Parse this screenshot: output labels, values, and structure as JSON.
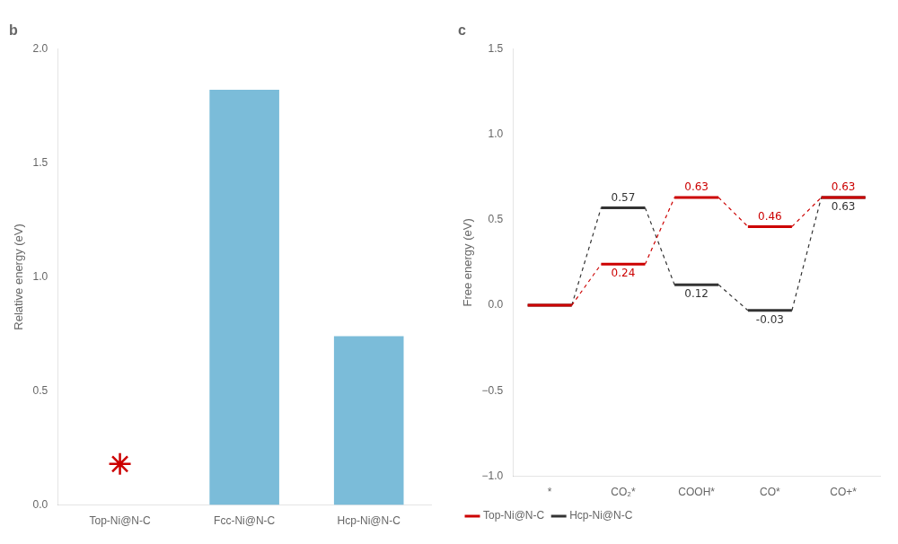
{
  "chart_data": [
    {
      "type": "bar",
      "title": "b",
      "categories": [
        "Top-Ni@N-C",
        "Fcc-Ni@N-C",
        "Hcp-Ni@N-C"
      ],
      "series": [
        {
          "type": "bar",
          "color": "#7BBCD9",
          "values": [
            0.0,
            1.82,
            0.74
          ]
        },
        {
          "type": "scatter",
          "marker": "star",
          "color": "#CC0000",
          "values": [
            0.18,
            null,
            null
          ]
        }
      ],
      "ylabel": "Relative energy (eV)",
      "ylim": [
        0.0,
        2.0
      ],
      "yticks": [
        {
          "value": 0.0,
          "label": "0.0"
        },
        0.5,
        {
          "value": 1.0,
          "label": "1.0"
        },
        1.5,
        {
          "value": 2.0,
          "label": "2.0"
        }
      ],
      "grid": false
    },
    {
      "type": "line",
      "title": "c",
      "categories": [
        "*",
        "CO₂*",
        "COOH*",
        "CO*",
        "CO+*"
      ],
      "series": [
        {
          "name": "Top-Ni@N-C",
          "color": "#CC0000",
          "values": [
            0.0,
            0.24,
            0.63,
            0.46,
            0.63
          ],
          "value_labels": [
            null,
            "0.24",
            "0.63",
            "0.46",
            "0.63"
          ]
        },
        {
          "name": "Hcp-Ni@N-C",
          "color": "#333333",
          "values": [
            0.0,
            0.57,
            0.12,
            -0.03,
            0.63
          ],
          "value_labels": [
            null,
            "0.57",
            "0.12",
            "-0.03",
            "0.63"
          ]
        }
      ],
      "ylabel": "Free energy (eV)",
      "ylim": [
        -1.0,
        1.5
      ],
      "yticks": [
        {
          "value": -1.0,
          "label": "−1.0"
        },
        {
          "value": -0.5,
          "label": "−0.5"
        },
        {
          "value": 0.0,
          "label": "0.0"
        },
        0.5,
        {
          "value": 1.0,
          "label": "1.0"
        },
        1.5
      ],
      "legend": "lower left",
      "data_labels": true,
      "grid": false
    }
  ]
}
